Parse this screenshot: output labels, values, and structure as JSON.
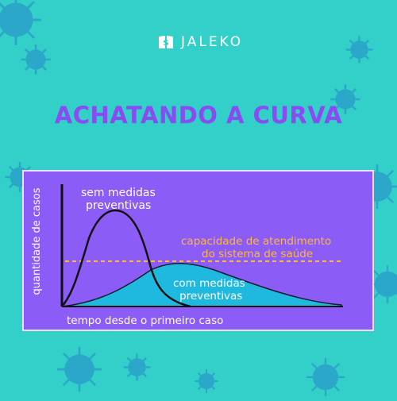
{
  "brand": {
    "name": "JALEKO",
    "icon": "book-dollar-icon"
  },
  "title": "ACHATANDO A CURVA",
  "diagram": {
    "y_axis_label": "quantidade de casos",
    "x_axis_label": "tempo desde o primeiro caso",
    "curve_no_measures_label": [
      "sem medidas",
      "preventivas"
    ],
    "curve_with_measures_label": [
      "com medidas",
      "preventivas"
    ],
    "capacity_label": [
      "capacidade de atendimento",
      "do sistema de saúde"
    ]
  },
  "colors": {
    "background": "#33d0c9",
    "title": "#8a4bf2",
    "panel": "#8b5cf6",
    "capacity_line": "#ffb938",
    "flattened_curve_fill": "#1fb9e0",
    "virus": "#2aa7c9"
  }
}
